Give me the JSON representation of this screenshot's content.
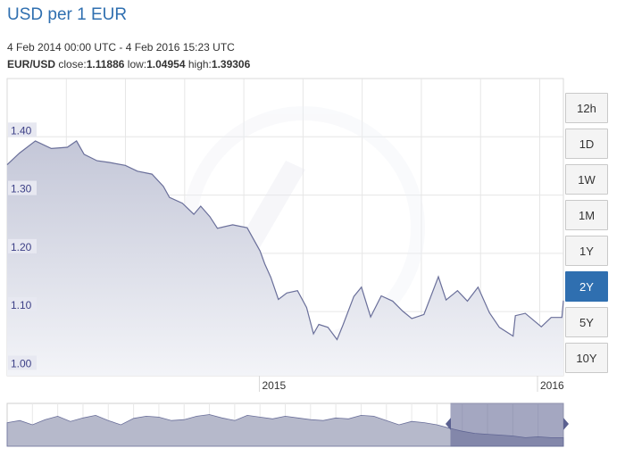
{
  "header": {
    "title": "USD per 1 EUR",
    "date_range": "4 Feb 2014 00:00 UTC - 4 Feb 2016 15:23 UTC",
    "pair": "EUR/USD",
    "close_label": "close:",
    "close_value": "1.11886",
    "low_label": "low:",
    "low_value": "1.04954",
    "high_label": "high:",
    "high_value": "1.39306"
  },
  "range_buttons": [
    {
      "label": "12h",
      "active": false
    },
    {
      "label": "1D",
      "active": false
    },
    {
      "label": "1W",
      "active": false
    },
    {
      "label": "1M",
      "active": false
    },
    {
      "label": "1Y",
      "active": false
    },
    {
      "label": "2Y",
      "active": true
    },
    {
      "label": "5Y",
      "active": false
    },
    {
      "label": "10Y",
      "active": false
    }
  ],
  "colors": {
    "line": "#6a6f9a",
    "fill_top": "#c4c7d8",
    "fill_bottom": "#f3f4f8",
    "tick_text": "#3c3f86",
    "tick_bg": "#e7e8f1",
    "navigator_fill": "#b6b9cb",
    "navigator_selected": "#5a6090",
    "accent": "#2f6fb0"
  },
  "chart_data": {
    "type": "area",
    "x_start": "2014-02-04",
    "x_end": "2016-02-04",
    "xticks": [
      {
        "x": "2015-01-01",
        "label": "2015"
      },
      {
        "x": "2016-01-01",
        "label": "2016"
      }
    ],
    "yticks": [
      {
        "y": 1.4,
        "label": "1.40"
      },
      {
        "y": 1.3,
        "label": "1.30"
      },
      {
        "y": 1.2,
        "label": "1.20"
      },
      {
        "y": 1.1,
        "label": "1.10"
      },
      {
        "y": 1.0,
        "label": "1.00"
      }
    ],
    "ylim": [
      0.99,
      1.5
    ],
    "grid": true,
    "series": [
      {
        "x": [
          "2014-02-04",
          "2014-02-20",
          "2014-03-13",
          "2014-04-03",
          "2014-04-24",
          "2014-05-06",
          "2014-05-16",
          "2014-06-02",
          "2014-06-18",
          "2014-07-09",
          "2014-07-25",
          "2014-08-13",
          "2014-08-28",
          "2014-09-05",
          "2014-09-22",
          "2014-10-07",
          "2014-10-16",
          "2014-10-28",
          "2014-11-07",
          "2014-11-27",
          "2014-12-16",
          "2015-01-02",
          "2015-01-08",
          "2015-01-16",
          "2015-01-26",
          "2015-02-06",
          "2015-02-20",
          "2015-03-04",
          "2015-03-13",
          "2015-03-20",
          "2015-04-01",
          "2015-04-13",
          "2015-04-21",
          "2015-05-05",
          "2015-05-15",
          "2015-05-27",
          "2015-06-10",
          "2015-06-25",
          "2015-07-08",
          "2015-07-20",
          "2015-08-05",
          "2015-08-24",
          "2015-09-03",
          "2015-09-18",
          "2015-10-01",
          "2015-10-15",
          "2015-10-30",
          "2015-11-12",
          "2015-11-30",
          "2015-12-03",
          "2015-12-16",
          "2016-01-06",
          "2016-01-19",
          "2016-02-02",
          "2016-02-04"
        ],
        "values": [
          1.352,
          1.372,
          1.393,
          1.38,
          1.382,
          1.393,
          1.37,
          1.359,
          1.356,
          1.351,
          1.341,
          1.336,
          1.315,
          1.296,
          1.286,
          1.267,
          1.281,
          1.263,
          1.243,
          1.249,
          1.244,
          1.204,
          1.182,
          1.159,
          1.121,
          1.132,
          1.136,
          1.107,
          1.062,
          1.078,
          1.073,
          1.052,
          1.078,
          1.126,
          1.142,
          1.091,
          1.127,
          1.118,
          1.101,
          1.088,
          1.095,
          1.16,
          1.12,
          1.136,
          1.118,
          1.142,
          1.098,
          1.073,
          1.058,
          1.093,
          1.097,
          1.074,
          1.09,
          1.09,
          1.119
        ]
      }
    ]
  }
}
